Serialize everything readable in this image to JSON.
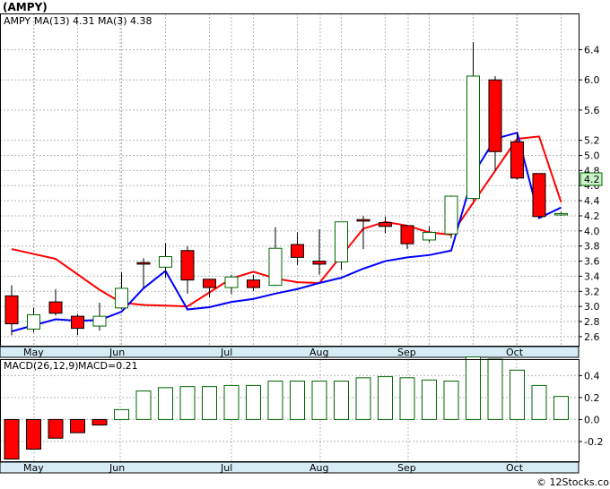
{
  "chart_data": [
    {
      "type": "candlestick",
      "title": "(AMPY)",
      "x_ticks": [
        "May",
        "Jun",
        "Jul",
        "Aug",
        "Sep",
        "Oct"
      ],
      "y_ticks": [
        2.6,
        2.8,
        3.0,
        3.2,
        3.4,
        3.6,
        3.8,
        4.0,
        4.2,
        4.4,
        4.6,
        4.8,
        5.0,
        5.2,
        5.6,
        6.0,
        6.4
      ],
      "ylim": [
        2.48,
        6.88
      ],
      "last_price": "4.2",
      "legend": {
        "ticker": "AMPY",
        "ma13": {
          "label": "MA(13)",
          "value": "4.31",
          "color": "#0000ff"
        },
        "ma3": {
          "label": "MA(3)",
          "value": "4.38",
          "color": "#ff0000"
        }
      },
      "colors": {
        "up_fill": "#ffffff",
        "up_stroke": "#006600",
        "down_fill": "#ff0000",
        "down_stroke": "#000000"
      },
      "candles": [
        {
          "o": 3.14,
          "h": 3.28,
          "l": 2.62,
          "c": 2.77
        },
        {
          "o": 2.7,
          "h": 2.98,
          "l": 2.66,
          "c": 2.89
        },
        {
          "o": 3.06,
          "h": 3.23,
          "l": 2.88,
          "c": 2.91
        },
        {
          "o": 2.87,
          "h": 2.9,
          "l": 2.62,
          "c": 2.71
        },
        {
          "o": 2.74,
          "h": 3.05,
          "l": 2.68,
          "c": 2.87
        },
        {
          "o": 2.98,
          "h": 3.45,
          "l": 2.96,
          "c": 3.24
        },
        {
          "o": 3.58,
          "h": 3.64,
          "l": 3.25,
          "c": 3.56
        },
        {
          "o": 3.52,
          "h": 3.84,
          "l": 3.38,
          "c": 3.66
        },
        {
          "o": 3.74,
          "h": 3.8,
          "l": 3.17,
          "c": 3.35
        },
        {
          "o": 3.36,
          "h": 3.36,
          "l": 3.12,
          "c": 3.25
        },
        {
          "o": 3.25,
          "h": 3.42,
          "l": 3.16,
          "c": 3.39
        },
        {
          "o": 3.35,
          "h": 3.42,
          "l": 3.2,
          "c": 3.25
        },
        {
          "o": 3.28,
          "h": 4.05,
          "l": 3.27,
          "c": 3.77
        },
        {
          "o": 3.82,
          "h": 3.98,
          "l": 3.55,
          "c": 3.65
        },
        {
          "o": 3.6,
          "h": 4.02,
          "l": 3.42,
          "c": 3.56
        },
        {
          "o": 3.59,
          "h": 4.12,
          "l": 3.48,
          "c": 4.12
        },
        {
          "o": 4.15,
          "h": 4.2,
          "l": 3.76,
          "c": 4.13
        },
        {
          "o": 4.11,
          "h": 4.19,
          "l": 3.97,
          "c": 4.06
        },
        {
          "o": 4.07,
          "h": 4.08,
          "l": 3.76,
          "c": 3.83
        },
        {
          "o": 3.88,
          "h": 4.06,
          "l": 3.85,
          "c": 3.98
        },
        {
          "o": 3.96,
          "h": 4.47,
          "l": 3.9,
          "c": 4.46
        },
        {
          "o": 4.43,
          "h": 6.5,
          "l": 4.4,
          "c": 6.05
        },
        {
          "o": 6.0,
          "h": 6.05,
          "l": 4.8,
          "c": 5.05
        },
        {
          "o": 5.18,
          "h": 5.3,
          "l": 4.68,
          "c": 4.7
        },
        {
          "o": 4.76,
          "h": 4.76,
          "l": 4.17,
          "c": 4.19
        },
        {
          "o": 4.22,
          "h": 4.25,
          "l": 4.2,
          "c": 4.23
        }
      ],
      "ma3": [
        3.76,
        null,
        3.63,
        null,
        3.22,
        3.05,
        3.02,
        3.01,
        3.0,
        null,
        3.37,
        3.46,
        3.37,
        3.32,
        3.31,
        null,
        4.03,
        4.12,
        4.07,
        3.98,
        3.95,
        null,
        null,
        5.22,
        5.25,
        4.38
      ],
      "ma13": [
        2.67,
        2.75,
        2.83,
        2.81,
        2.82,
        2.93,
        3.24,
        3.47,
        2.96,
        2.99,
        3.06,
        3.1,
        3.17,
        3.23,
        3.31,
        3.38,
        3.5,
        3.6,
        3.65,
        3.68,
        3.74,
        4.75,
        5.22,
        5.3,
        4.17,
        4.31
      ]
    },
    {
      "type": "bar",
      "title": "MACD(26,12,9)",
      "legend": {
        "label": "MACD(26,12,9)",
        "value_label": "MACD=0.21",
        "color": "#0000ff"
      },
      "x_ticks": [
        "May",
        "Jun",
        "Jul",
        "Aug",
        "Sep",
        "Oct"
      ],
      "y_ticks": [
        "0.4",
        "0.2",
        "0.0",
        "-0.2"
      ],
      "ylim": [
        -0.38,
        0.55
      ],
      "bar_color": "#006600",
      "values": [
        -0.36,
        -0.27,
        -0.17,
        -0.12,
        -0.05,
        0.09,
        0.26,
        0.29,
        0.3,
        0.3,
        0.31,
        0.31,
        0.35,
        0.35,
        0.35,
        0.35,
        0.38,
        0.39,
        0.38,
        0.36,
        0.35,
        0.57,
        0.55,
        0.45,
        0.31,
        0.21
      ]
    }
  ],
  "footer": {
    "copyright": "© 12Stocks.com"
  }
}
